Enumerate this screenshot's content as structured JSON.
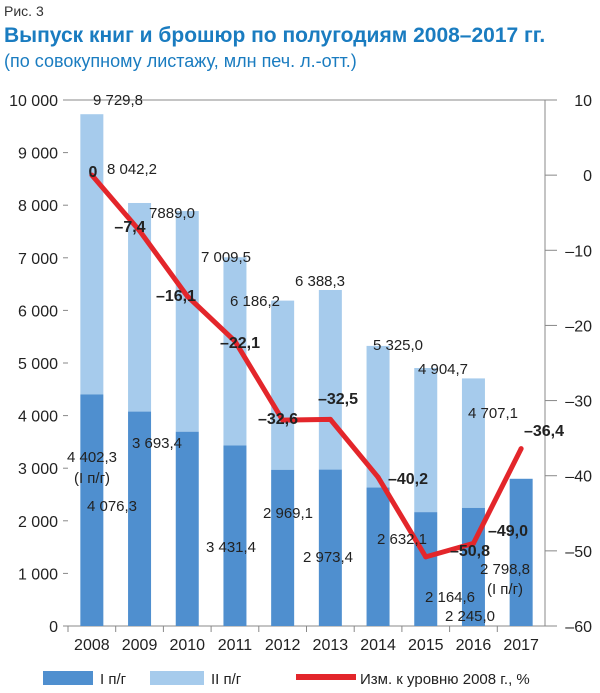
{
  "chart_data": {
    "type": "bar",
    "figure_label": "Рис. 3",
    "title": "Выпуск книг и брошюр по полугодиям 2008–2017 гг.",
    "subtitle": "(по совокупному листажу, млн печ. л.-отт.)",
    "categories": [
      "2008",
      "2009",
      "2010",
      "2011",
      "2012",
      "2013",
      "2014",
      "2015",
      "2016",
      "2017"
    ],
    "series": [
      {
        "name": "I п/г",
        "type": "bar",
        "color": "#4f8fcf",
        "values": [
          4402.3,
          4076.3,
          3693.4,
          3431.4,
          2969.1,
          2973.4,
          2632.1,
          2164.6,
          2245.0,
          2798.8
        ],
        "labels": [
          "4 402,3",
          "4 076,3",
          "3 693,4",
          "3 431,4",
          "2 969,1",
          "2 973,4",
          "2 632,1",
          "2 164,6",
          "2 245,0",
          "2 798,8"
        ]
      },
      {
        "name": "II п/г",
        "type": "bar",
        "color": "#a6cbec",
        "totals": [
          9729.8,
          8042.2,
          7889.0,
          7009.5,
          6186.2,
          6388.3,
          5325.0,
          4904.7,
          4707.1,
          null
        ],
        "labels": [
          "9 729,8",
          "8 042,2",
          "7889,0",
          "7 009,5",
          "6 186,2",
          "6 388,3",
          "5 325,0",
          "4 904,7",
          "4 707,1",
          null
        ]
      },
      {
        "name": "Изм. к уровню 2008 г., %",
        "type": "line",
        "axis": "right",
        "color": "#e3262b",
        "values": [
          0,
          -7.4,
          -16.1,
          -22.1,
          -32.6,
          -32.5,
          -40.2,
          -50.8,
          -49.0,
          -36.4
        ],
        "labels": [
          "0",
          "–7,4",
          "–16,1",
          "–22,1",
          "–32,6",
          "–32,5",
          "–40,2",
          "–50,8",
          "–49,0",
          "–36,4"
        ]
      }
    ],
    "half_note": "(I п/г)",
    "ylim": [
      0,
      10000
    ],
    "yticks": [
      "0",
      "1 000",
      "2 000",
      "3 000",
      "4 000",
      "5 000",
      "6 000",
      "7 000",
      "8 000",
      "9 000",
      "10 000"
    ],
    "y2lim": [
      -60,
      10
    ],
    "y2ticks": [
      "–60",
      "–50",
      "–40",
      "–30",
      "–20",
      "–10",
      "0",
      "10"
    ],
    "legend": "bottom"
  }
}
